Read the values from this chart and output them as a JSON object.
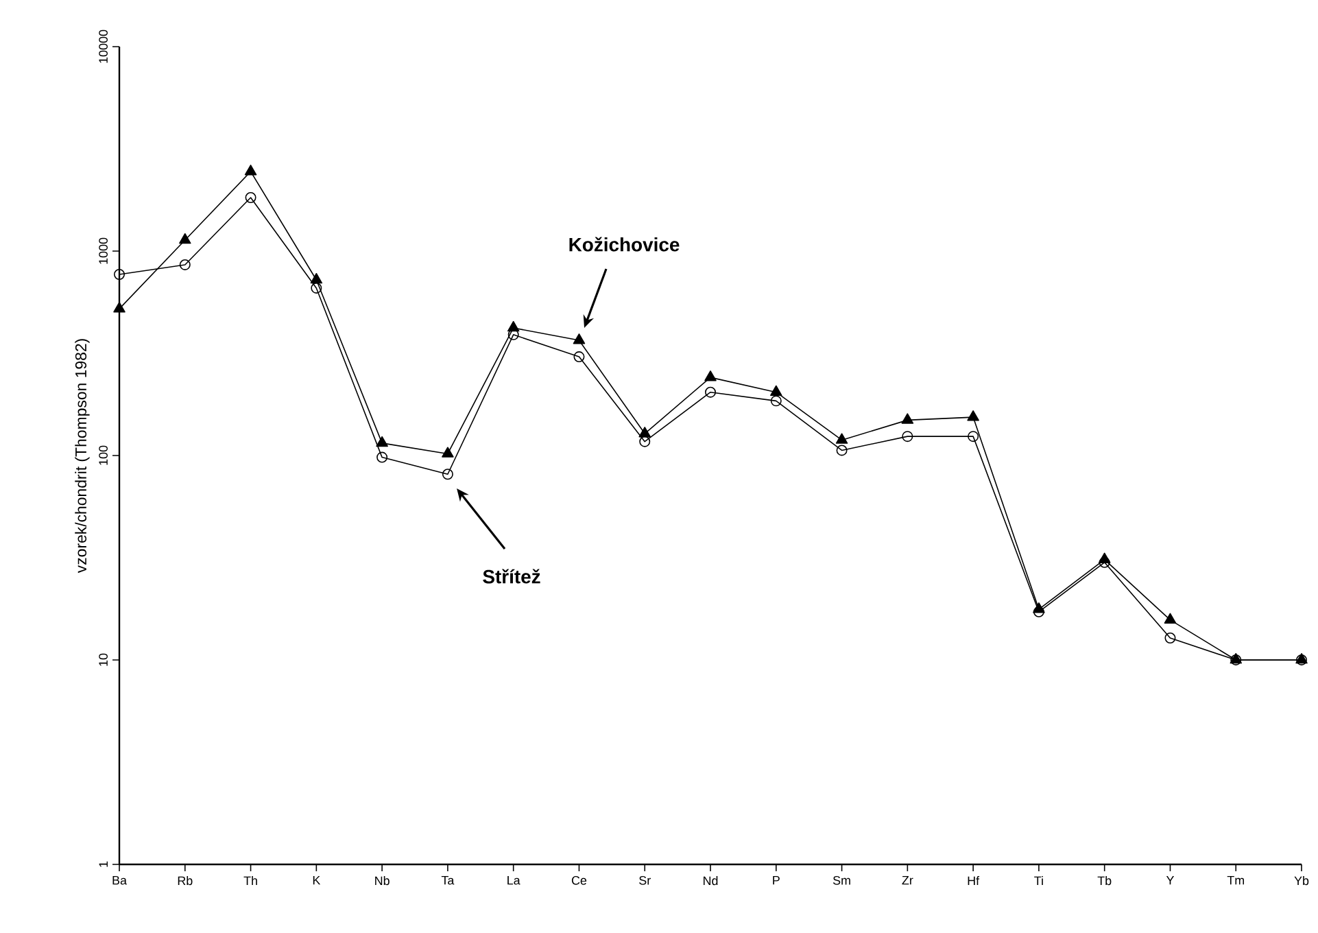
{
  "chart_data": {
    "type": "line",
    "ylabel": "vzorek/chondrit (Thompson 1982)",
    "categories": [
      "Ba",
      "Rb",
      "Th",
      "K",
      "Nb",
      "Ta",
      "La",
      "Ce",
      "Sr",
      "Nd",
      "P",
      "Sm",
      "Zr",
      "Hf",
      "Ti",
      "Tb",
      "Y",
      "Tm",
      "Yb"
    ],
    "series": [
      {
        "color": "#000000",
        "marker": "circle",
        "values": [
          769,
          857,
          1827,
          659,
          98,
          81,
          390,
          304,
          117,
          204,
          185,
          106,
          124,
          124,
          17.2,
          30,
          12.8,
          10,
          10
        ]
      },
      {
        "color": "#000000",
        "marker": "triangle",
        "values": [
          522,
          1132,
          2450,
          723,
          115,
          102,
          421,
          366,
          128,
          241,
          204,
          119,
          149,
          154,
          17.7,
          31,
          15.7,
          10,
          10
        ]
      }
    ],
    "log": "y",
    "ylim": [
      1,
      10000
    ],
    "yticks": [
      1,
      10,
      100,
      1000,
      10000
    ],
    "grid": false,
    "line_style": "solid",
    "annotations": [
      "Kožichovice",
      "Střítež"
    ]
  }
}
